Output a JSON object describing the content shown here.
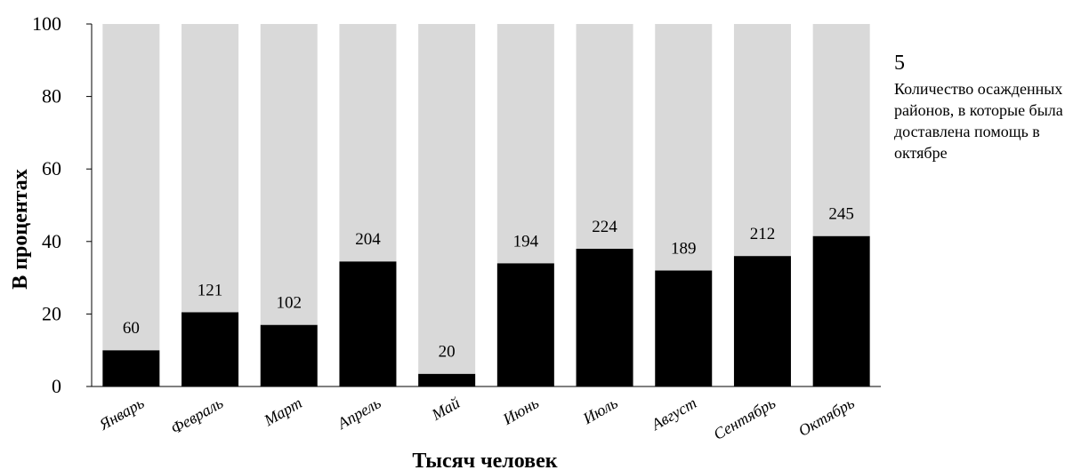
{
  "chart_data": {
    "type": "bar",
    "stacked": true,
    "categories": [
      "Январь",
      "Февраль",
      "Март",
      "Апрель",
      "Май",
      "Июнь",
      "Июль",
      "Август",
      "Сентябрь",
      "Октябрь"
    ],
    "series": [
      {
        "values": [
          10,
          20.5,
          17,
          34.5,
          3.5,
          34,
          38,
          32,
          36,
          41.5
        ],
        "color": "#000000"
      },
      {
        "values": [
          90,
          79.5,
          83,
          65.5,
          96.5,
          66,
          62,
          68,
          64,
          58.5
        ],
        "color": "#d9d9d9"
      }
    ],
    "data_labels": [
      "60",
      "121",
      "102",
      "204",
      "20",
      "194",
      "224",
      "189",
      "212",
      "245"
    ],
    "xlabel": "Тысяч человек",
    "ylabel": "В процентах",
    "ylim": [
      0,
      100
    ],
    "yticks": [
      0,
      20,
      40,
      60,
      80,
      100
    ],
    "grid": false
  },
  "annotation": {
    "number": "5",
    "text": "Количество осажденных районов, в которые была доставлена помощь в октябре"
  }
}
